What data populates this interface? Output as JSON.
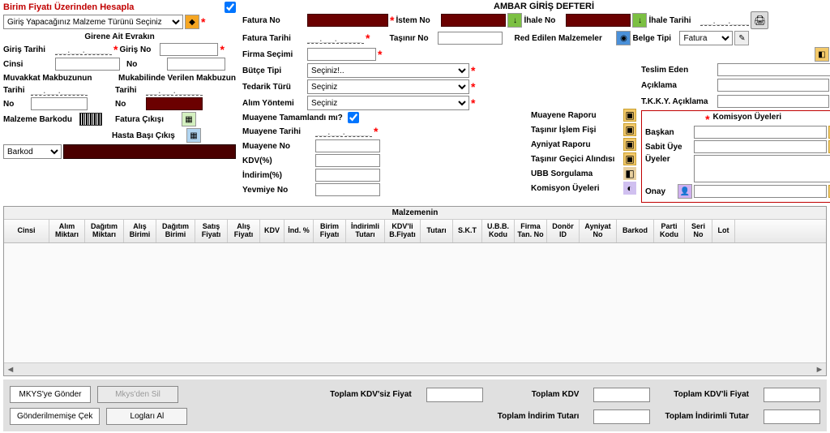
{
  "title": "AMBAR GİRİŞ DEFTERİ",
  "topleft": {
    "birim_fiyat_label": "Birim Fiyatı Üzerinden Hesapla",
    "malzeme_turu_placeholder": "Giriş Yapacağınız Malzeme Türünü Seçiniz",
    "girene_label": "Girene Ait Evrakın",
    "giris_tarihi": "Giriş Tarihi",
    "giris_no": "Giriş No",
    "cinsi": "Cinsi",
    "no": "No",
    "muvakkat": "Muvakkat Makbuzunun",
    "mukabilinde": "Mukabilinde Verilen Makbuzun",
    "tarihi": "Tarihi",
    "malzeme_barkodu": "Malzeme Barkodu",
    "fatura_cikisi": "Fatura Çıkışı",
    "hasta_basi": "Hasta Başı Çıkış",
    "barkod": "Barkod"
  },
  "mid": {
    "fatura_no": "Fatura No",
    "istem_no": "İstem No",
    "ihale_no": "İhale No",
    "ihale_tarihi": "İhale Tarihi",
    "belge_tipi": "Belge Tipi",
    "belge_tipi_value": "Fatura",
    "fatura_tarihi": "Fatura Tarihi",
    "tasinir_no": "Taşınır No",
    "red_edilen": "Red Edilen Malzemeler",
    "firma_secimi": "Firma Seçimi",
    "butce_tipi": "Bütçe Tipi",
    "butce_tipi_value": "Seçiniz!..",
    "tedarik_turu": "Tedarik Türü",
    "tedarik_turu_value": "Seçiniz",
    "alim_yontemi": "Alım Yöntemi",
    "alim_yontemi_value": "Seçiniz",
    "muayene_tamam": "Muayene Tamamlandı mı?",
    "muayene_tarihi": "Muayene Tarihi",
    "muayene_no": "Muayene No",
    "kdv_pct": "KDV(%)",
    "indirim_pct": "İndirim(%)",
    "yevmiye_no": "Yevmiye No",
    "muayene_raporu": "Muayene Raporu",
    "tasinir_islem": "Taşınır İşlem Fişi",
    "ayniyat_raporu": "Ayniyat Raporu",
    "tasinir_gecici": "Taşınır Geçici Alındısı",
    "ubb": "UBB Sorgulama",
    "komisyon": "Komisyon Üyeleri"
  },
  "right": {
    "teslim_eden": "Teslim Eden",
    "aciklama": "Açıklama",
    "tkky": "T.K.K.Y. Açıklama",
    "komisyon_title": "Komisyon Üyeleri",
    "baskan": "Başkan",
    "sabit_uye": "Sabit Üye",
    "uyeler": "Üyeler",
    "onay": "Onay"
  },
  "table": {
    "title": "Malzemenin",
    "cols": [
      "Cinsi",
      "Alım Miktarı",
      "Dağıtım Miktarı",
      "Alış Birimi",
      "Dağıtım Birimi",
      "Satış Fiyatı",
      "Alış Fiyatı",
      "KDV",
      "İnd. %",
      "Birim Fiyatı",
      "İndirimli Tutarı",
      "KDV'li B.Fiyatı",
      "Tutarı",
      "S.K.T",
      "U.B.B. Kodu",
      "Firma Tan. No",
      "Donör ID",
      "Ayniyat No",
      "Barkod",
      "Parti Kodu",
      "Seri No",
      "Lot"
    ],
    "widths": [
      56,
      44,
      48,
      40,
      48,
      40,
      40,
      30,
      36,
      40,
      48,
      44,
      40,
      36,
      40,
      40,
      40,
      46,
      46,
      38,
      34,
      28
    ]
  },
  "footer": {
    "mkys_gonder": "MKYS'ye Gönder",
    "mkys_sil": "Mkys'den Sil",
    "gonderilmemis": "Gönderilmemişe Çek",
    "loglari": "Logları Al",
    "toplam_kdvsiz": "Toplam KDV'siz Fiyat",
    "toplam_kdv": "Toplam KDV",
    "toplam_kdvli": "Toplam KDV'li Fiyat",
    "toplam_indirim": "Toplam İndirim Tutarı",
    "toplam_indirimli": "Toplam İndirimli Tutar"
  },
  "date_placeholder": "__.__.____"
}
